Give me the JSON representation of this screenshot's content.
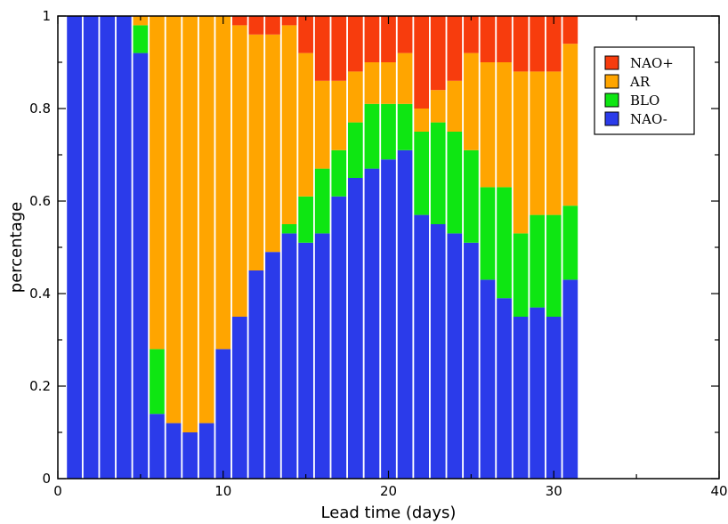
{
  "chart_data": {
    "type": "bar",
    "stacked": true,
    "xlabel": "Lead time (days)",
    "ylabel": "percentage",
    "xlim": [
      0,
      40
    ],
    "ylim": [
      0,
      1
    ],
    "x_ticks": [
      "0",
      "10",
      "20",
      "30",
      "40"
    ],
    "x_tick_values": [
      0,
      10,
      20,
      30,
      40
    ],
    "y_ticks": [
      "0",
      "0.2",
      "0.4",
      "0.6",
      "0.8",
      "1"
    ],
    "y_tick_values": [
      0,
      0.2,
      0.4,
      0.6,
      0.8,
      1.0
    ],
    "grid": false,
    "legend_position": "top-right",
    "x": [
      1,
      2,
      3,
      4,
      5,
      6,
      7,
      8,
      9,
      10,
      11,
      12,
      13,
      14,
      15,
      16,
      17,
      18,
      19,
      20,
      21,
      22,
      23,
      24,
      25,
      26,
      27,
      28,
      29,
      30,
      31
    ],
    "series": [
      {
        "name": "NAO-",
        "color": "#2b3bea",
        "values": [
          1.0,
          1.0,
          1.0,
          1.0,
          0.92,
          0.14,
          0.12,
          0.1,
          0.12,
          0.28,
          0.35,
          0.45,
          0.49,
          0.53,
          0.51,
          0.53,
          0.61,
          0.65,
          0.67,
          0.69,
          0.71,
          0.57,
          0.55,
          0.53,
          0.51,
          0.43,
          0.39,
          0.35,
          0.37,
          0.35,
          0.43
        ]
      },
      {
        "name": "BLO",
        "color": "#0ee612",
        "values": [
          0,
          0,
          0,
          0,
          0.06,
          0.14,
          0,
          0,
          0,
          0,
          0,
          0,
          0,
          0.02,
          0.1,
          0.14,
          0.1,
          0.12,
          0.14,
          0.12,
          0.1,
          0.18,
          0.22,
          0.22,
          0.2,
          0.2,
          0.24,
          0.18,
          0.2,
          0.22,
          0.16
        ]
      },
      {
        "name": "AR",
        "color": "#ffa500",
        "values": [
          0,
          0,
          0,
          0,
          0.02,
          0.72,
          0.88,
          0.9,
          0.88,
          0.72,
          0.63,
          0.51,
          0.47,
          0.43,
          0.31,
          0.19,
          0.15,
          0.11,
          0.09,
          0.09,
          0.11,
          0.05,
          0.07,
          0.11,
          0.21,
          0.27,
          0.27,
          0.35,
          0.31,
          0.31,
          0.35
        ]
      },
      {
        "name": "NAO+",
        "color": "#f73c0d",
        "values": [
          0,
          0,
          0,
          0,
          0,
          0,
          0,
          0,
          0,
          0,
          0.02,
          0.04,
          0.04,
          0.02,
          0.08,
          0.14,
          0.14,
          0.12,
          0.1,
          0.1,
          0.08,
          0.2,
          0.16,
          0.14,
          0.08,
          0.1,
          0.1,
          0.12,
          0.12,
          0.12,
          0.06
        ]
      }
    ],
    "legend_order": [
      "NAO+",
      "AR",
      "BLO",
      "NAO-"
    ]
  }
}
